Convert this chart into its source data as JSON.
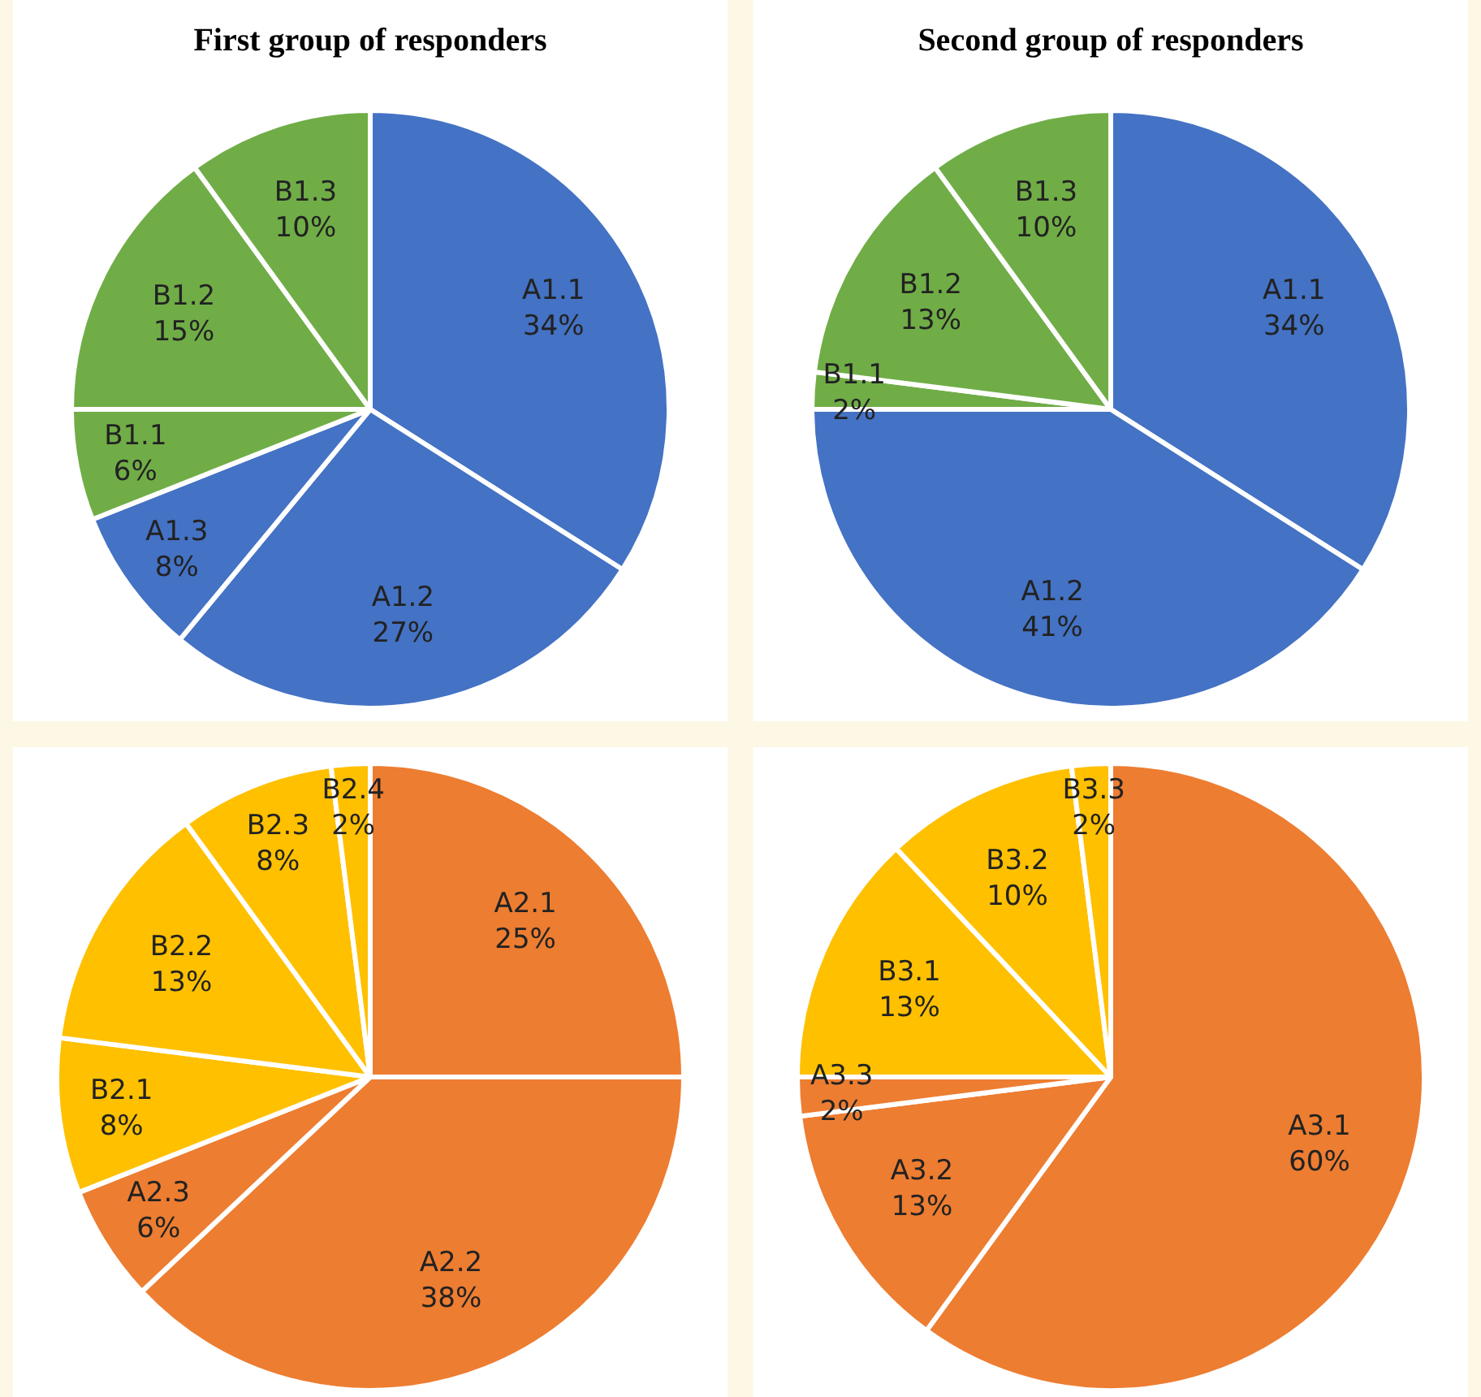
{
  "chart_data": [
    {
      "type": "pie",
      "title": "First group of responders",
      "categories": [
        "A1.1",
        "A1.2",
        "A1.3",
        "B1.1",
        "B1.2",
        "B1.3"
      ],
      "values": [
        34,
        27,
        8,
        6,
        15,
        10
      ],
      "value_labels": [
        "34%",
        "27%",
        "8%",
        "6%",
        "15%",
        "10%"
      ],
      "colors": [
        "#4472c4",
        "#4472c4",
        "#4472c4",
        "#70ad47",
        "#70ad47",
        "#70ad47"
      ]
    },
    {
      "type": "pie",
      "title": "Second group of responders",
      "categories": [
        "A1.1",
        "A1.2",
        "B1.1",
        "B1.2",
        "B1.3"
      ],
      "values": [
        34,
        41,
        2,
        13,
        10
      ],
      "value_labels": [
        "34%",
        "41%",
        "2%",
        "13%",
        "10%"
      ],
      "colors": [
        "#4472c4",
        "#4472c4",
        "#70ad47",
        "#70ad47",
        "#70ad47"
      ]
    },
    {
      "type": "pie",
      "categories": [
        "A2.1",
        "A2.2",
        "A2.3",
        "B2.1",
        "B2.2",
        "B2.3",
        "B2.4"
      ],
      "values": [
        25,
        38,
        6,
        8,
        13,
        8,
        2
      ],
      "value_labels": [
        "25%",
        "38%",
        "6%",
        "8%",
        "13%",
        "8%",
        "2%"
      ],
      "colors": [
        "#ed7d31",
        "#ed7d31",
        "#ed7d31",
        "#ffc000",
        "#ffc000",
        "#ffc000",
        "#ffc000"
      ]
    },
    {
      "type": "pie",
      "categories": [
        "A3.1",
        "A3.2",
        "A3.3",
        "B3.1",
        "B3.2",
        "B3.3"
      ],
      "values": [
        60,
        13,
        2,
        13,
        10,
        2
      ],
      "value_labels": [
        "60%",
        "13%",
        "2%",
        "13%",
        "10%",
        "2%"
      ],
      "colors": [
        "#ed7d31",
        "#ed7d31",
        "#ed7d31",
        "#ffc000",
        "#ffc000",
        "#ffc000"
      ]
    }
  ]
}
